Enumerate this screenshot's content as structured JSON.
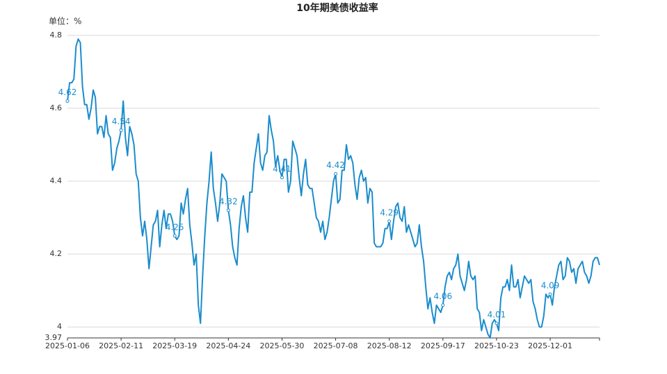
{
  "chart_data": {
    "type": "line",
    "title": "10年期美债收益率",
    "y_unit_label": "单位：%",
    "categories": [
      "2025-01-06",
      null,
      null,
      null,
      null,
      null,
      null,
      null,
      null,
      null,
      null,
      null,
      null,
      null,
      null,
      null,
      null,
      null,
      null,
      null,
      null,
      null,
      null,
      null,
      null,
      "2025-02-11",
      null,
      null,
      null,
      null,
      null,
      null,
      null,
      null,
      null,
      null,
      null,
      null,
      null,
      null,
      null,
      null,
      null,
      null,
      null,
      null,
      null,
      null,
      null,
      null,
      "2025-03-19",
      null,
      null,
      null,
      null,
      null,
      null,
      null,
      null,
      null,
      null,
      null,
      null,
      null,
      null,
      null,
      null,
      null,
      null,
      null,
      null,
      null,
      null,
      null,
      null,
      "2025-04-24",
      null,
      null,
      null,
      null,
      null,
      null,
      null,
      null,
      null,
      null,
      null,
      null,
      null,
      null,
      null,
      null,
      null,
      null,
      null,
      null,
      null,
      null,
      null,
      null,
      "2025-05-30",
      null,
      null,
      null,
      null,
      null,
      null,
      null,
      null,
      null,
      null,
      null,
      null,
      null,
      null,
      null,
      null,
      null,
      null,
      null,
      null,
      null,
      null,
      null,
      null,
      "2025-07-08",
      null,
      null,
      null,
      null,
      null,
      null,
      null,
      null,
      null,
      null,
      null,
      null,
      null,
      null,
      null,
      null,
      null,
      null,
      null,
      null,
      null,
      null,
      null,
      null,
      "2025-08-12",
      null,
      null,
      null,
      null,
      null,
      null,
      null,
      null,
      null,
      null,
      null,
      null,
      null,
      null,
      null,
      null,
      null,
      null,
      null,
      null,
      null,
      null,
      null,
      null,
      "2025-09-17",
      null,
      null,
      null,
      null,
      null,
      null,
      null,
      null,
      null,
      null,
      null,
      null,
      null,
      null,
      null,
      null,
      null,
      null,
      null,
      null,
      null,
      null,
      null,
      null,
      "2025-10-23",
      null,
      null,
      null,
      null,
      null,
      null,
      null,
      null,
      null,
      null,
      null,
      null,
      null,
      null,
      null,
      null,
      null,
      null,
      null,
      null,
      null,
      null,
      null,
      null,
      "2025-12-01",
      null,
      null,
      null,
      null,
      null,
      null,
      null,
      null,
      null,
      null,
      null,
      null,
      null,
      null,
      null,
      null,
      null,
      null,
      null,
      null,
      null,
      null,
      null
    ],
    "values": [
      4.62,
      4.67,
      4.67,
      4.68,
      4.77,
      4.79,
      4.78,
      4.66,
      4.61,
      4.61,
      4.57,
      4.6,
      4.65,
      4.63,
      4.53,
      4.55,
      4.55,
      4.52,
      4.58,
      4.53,
      4.52,
      4.43,
      4.45,
      4.49,
      4.51,
      4.54,
      4.62,
      4.52,
      4.47,
      4.55,
      4.53,
      4.5,
      4.42,
      4.4,
      4.3,
      4.25,
      4.29,
      4.24,
      4.16,
      4.22,
      4.28,
      4.29,
      4.32,
      4.22,
      4.28,
      4.32,
      4.27,
      4.31,
      4.31,
      4.29,
      4.25,
      4.24,
      4.25,
      4.34,
      4.31,
      4.35,
      4.38,
      4.28,
      4.23,
      4.17,
      4.2,
      4.06,
      4.01,
      4.14,
      4.25,
      4.34,
      4.4,
      4.48,
      4.38,
      4.34,
      4.29,
      4.34,
      4.42,
      4.41,
      4.4,
      4.32,
      4.28,
      4.22,
      4.19,
      4.17,
      4.27,
      4.33,
      4.36,
      4.3,
      4.26,
      4.37,
      4.37,
      4.45,
      4.49,
      4.53,
      4.45,
      4.43,
      4.47,
      4.48,
      4.58,
      4.54,
      4.51,
      4.44,
      4.47,
      4.43,
      4.41,
      4.46,
      4.46,
      4.37,
      4.4,
      4.51,
      4.49,
      4.47,
      4.41,
      4.36,
      4.42,
      4.46,
      4.39,
      4.38,
      4.38,
      4.34,
      4.3,
      4.29,
      4.26,
      4.29,
      4.24,
      4.26,
      4.3,
      4.35,
      4.4,
      4.42,
      4.34,
      4.35,
      4.43,
      4.43,
      4.5,
      4.46,
      4.47,
      4.45,
      4.39,
      4.35,
      4.41,
      4.43,
      4.4,
      4.41,
      4.34,
      4.38,
      4.37,
      4.23,
      4.22,
      4.22,
      4.22,
      4.23,
      4.27,
      4.27,
      4.29,
      4.24,
      4.29,
      4.33,
      4.34,
      4.3,
      4.29,
      4.33,
      4.26,
      4.28,
      4.26,
      4.24,
      4.22,
      4.23,
      4.28,
      4.22,
      4.18,
      4.11,
      4.05,
      4.08,
      4.04,
      4.01,
      4.06,
      4.05,
      4.04,
      4.06,
      4.11,
      4.14,
      4.15,
      4.13,
      4.16,
      4.17,
      4.2,
      4.14,
      4.12,
      4.1,
      4.13,
      4.18,
      4.14,
      4.13,
      4.14,
      4.05,
      4.04,
      3.99,
      4.02,
      4.0,
      3.98,
      3.97,
      4.01,
      4.02,
      4.01,
      3.99,
      4.08,
      4.11,
      4.11,
      4.13,
      4.1,
      4.17,
      4.11,
      4.11,
      4.13,
      4.08,
      4.11,
      4.14,
      4.13,
      4.12,
      4.13,
      4.07,
      4.05,
      4.02,
      4.0,
      4.0,
      4.03,
      4.09,
      4.08,
      4.09,
      4.06,
      4.11,
      4.14,
      4.17,
      4.18,
      4.13,
      4.14,
      4.19,
      4.18,
      4.15,
      4.16,
      4.12,
      4.16,
      4.17,
      4.18,
      4.15,
      4.14,
      4.12,
      4.14,
      4.18,
      4.19,
      4.19,
      4.17
    ],
    "color": "#1a8ccc",
    "label_interval": 25,
    "ylim": [
      3.97,
      4.8
    ],
    "yticks": [
      3.97,
      4,
      4.2,
      4.4,
      4.6,
      4.8
    ],
    "grid": true
  }
}
